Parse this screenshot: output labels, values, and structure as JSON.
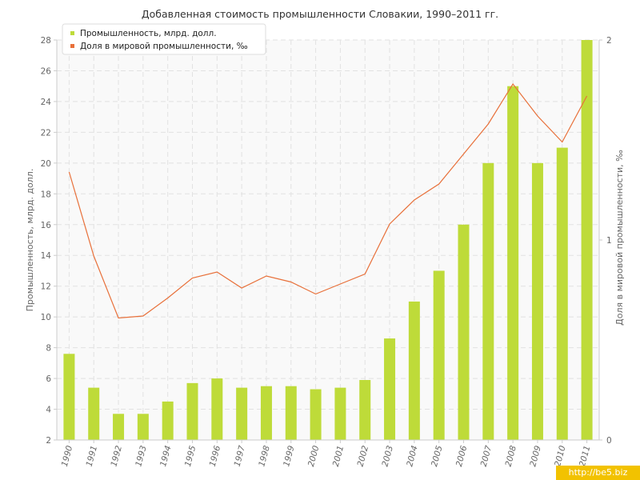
{
  "watermark": "http://be5.biz",
  "colors": {
    "bars": "#bedb39",
    "line": "#e8703a",
    "grid": "#e2e2e2",
    "plot_bg": "#f9f9f9",
    "axis": "#cccccc"
  },
  "chart_data": {
    "type": "bar",
    "title": "Добавленная стоимость промышленности Словакии, 1990–2011 гг.",
    "xlabel": "",
    "ylabel": "Промышленность, млрд. долл.",
    "y2label": "Доля в мировой промышленности, ‰",
    "ylim": [
      2,
      28
    ],
    "y2lim": [
      0,
      2
    ],
    "yticks": [
      "2",
      "4",
      "6",
      "8",
      "10",
      "12",
      "14",
      "16",
      "18",
      "20",
      "22",
      "24",
      "26",
      "28"
    ],
    "y2ticks": [
      "0",
      "1",
      "2"
    ],
    "grid": true,
    "legend_position": "top-left",
    "categories": [
      "1990",
      "1991",
      "1992",
      "1993",
      "1994",
      "1995",
      "1996",
      "1997",
      "1998",
      "1999",
      "2000",
      "2001",
      "2002",
      "2003",
      "2004",
      "2005",
      "2006",
      "2007",
      "2008",
      "2009",
      "2010",
      "2011"
    ],
    "series": [
      {
        "name": "Промышленность, млрд. долл.",
        "type": "bar",
        "axis": "left",
        "values": [
          7.6,
          5.4,
          3.7,
          3.7,
          4.5,
          5.7,
          6.0,
          5.4,
          5.5,
          5.5,
          5.3,
          5.4,
          5.9,
          8.6,
          11.0,
          13.0,
          16.0,
          20.0,
          25.0,
          20.0,
          21.0,
          28.0
        ]
      },
      {
        "name": "Доля в мировой промышленности, ‰",
        "type": "line",
        "axis": "right",
        "values": [
          1.34,
          0.92,
          0.61,
          0.62,
          0.71,
          0.81,
          0.84,
          0.76,
          0.82,
          0.79,
          0.73,
          0.78,
          0.83,
          1.08,
          1.2,
          1.28,
          1.43,
          1.58,
          1.78,
          1.62,
          1.49,
          1.72
        ]
      }
    ]
  }
}
